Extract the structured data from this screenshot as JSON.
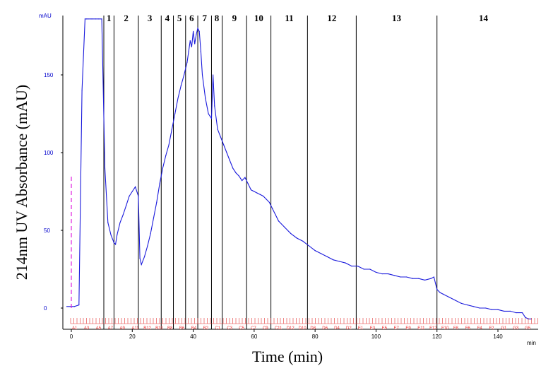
{
  "chart_data": {
    "type": "line",
    "xlabel": "Time (min)",
    "ylabel": "214nm UV Absorbance (mAU)",
    "y_unit": "mAU",
    "x_unit": "min",
    "xlim": [
      -1,
      151
    ],
    "ylim": [
      -8,
      190
    ],
    "x_ticks": [
      0,
      20,
      40,
      60,
      80,
      100,
      120,
      140
    ],
    "y_ticks": [
      0,
      50,
      100,
      150
    ],
    "grid": false,
    "fraction_boundaries": [
      14,
      22,
      29.5,
      33.5,
      37.5,
      41.5,
      46,
      49.5,
      57.5,
      65.5,
      77.5,
      93.5,
      120
    ],
    "fractions": [
      "1",
      "2",
      "3",
      "4",
      "5",
      "6",
      "7",
      "8",
      "9",
      "10",
      "11",
      "12",
      "13",
      "14"
    ],
    "tubes": [
      "A1",
      "A3",
      "A5",
      "A7",
      "A9",
      "A11",
      "B12",
      "B10",
      "B8",
      "B6",
      "B4",
      "B2",
      "C1",
      "C3",
      "C5",
      "C7",
      "C9",
      "C11",
      "D12",
      "D10",
      "D8",
      "D6",
      "D4",
      "D2",
      "E1",
      "E3",
      "E5",
      "E7",
      "E9",
      "E11",
      "F12",
      "F10",
      "F8",
      "F6",
      "F4",
      "F2",
      "G1",
      "G3",
      "G5"
    ],
    "series": [
      {
        "x": [
          -1.5,
          1,
          2.5,
          3.5,
          4.5,
          5,
          5.5,
          6.5,
          7,
          8,
          9,
          10,
          11,
          12,
          13,
          14,
          14.5,
          15,
          16,
          17,
          18,
          19,
          20,
          21,
          22,
          22.5,
          23,
          24,
          25,
          26,
          27,
          28,
          29,
          30,
          31,
          32,
          33,
          34,
          35,
          36,
          37,
          38,
          38.5,
          39,
          39.5,
          40,
          40.5,
          41,
          41.5,
          42,
          42.5,
          43,
          44,
          45,
          46,
          46.5,
          47,
          48,
          49,
          50,
          51,
          52,
          53,
          54,
          55,
          56,
          57,
          58,
          59,
          60,
          61,
          62,
          63,
          64,
          65,
          66,
          67,
          68,
          70,
          72,
          74,
          76,
          78,
          80,
          82,
          84,
          86,
          88,
          90,
          92,
          94,
          96,
          98,
          100,
          102,
          104,
          106,
          108,
          110,
          112,
          114,
          116,
          118,
          119,
          120,
          121,
          122,
          124,
          126,
          128,
          130,
          132,
          134,
          136,
          138,
          140,
          142,
          144,
          146,
          148,
          149,
          150,
          151
        ],
        "y": [
          1,
          1,
          2,
          140,
          190,
          190,
          190,
          190,
          190,
          190,
          190,
          190,
          90,
          55,
          47,
          42,
          41,
          47,
          55,
          60,
          66,
          72,
          75,
          78,
          72,
          32,
          28,
          33,
          40,
          48,
          58,
          68,
          80,
          90,
          98,
          105,
          115,
          125,
          135,
          143,
          150,
          158,
          165,
          172,
          168,
          178,
          170,
          176,
          180,
          178,
          165,
          150,
          135,
          125,
          122,
          150,
          130,
          115,
          110,
          105,
          100,
          95,
          90,
          87,
          85,
          82,
          84,
          80,
          76,
          75,
          74,
          73,
          72,
          70,
          68,
          64,
          60,
          56,
          52,
          48,
          45,
          43,
          40,
          37,
          35,
          33,
          31,
          30,
          29,
          27,
          27,
          25,
          25,
          23,
          22,
          22,
          21,
          20,
          20,
          19,
          19,
          18,
          19,
          20,
          12,
          10,
          9,
          7,
          5,
          3,
          2,
          1,
          0,
          0,
          -1,
          -1,
          -2,
          -2,
          -3,
          -3,
          -6,
          -7,
          -7
        ]
      }
    ]
  },
  "colors": {
    "line": "#1a1adc",
    "axis_tick_y": "#0000cc",
    "tube_marks": "#e33333",
    "dashed_marker": "#e020e0",
    "fraction_lines": "#000000"
  }
}
